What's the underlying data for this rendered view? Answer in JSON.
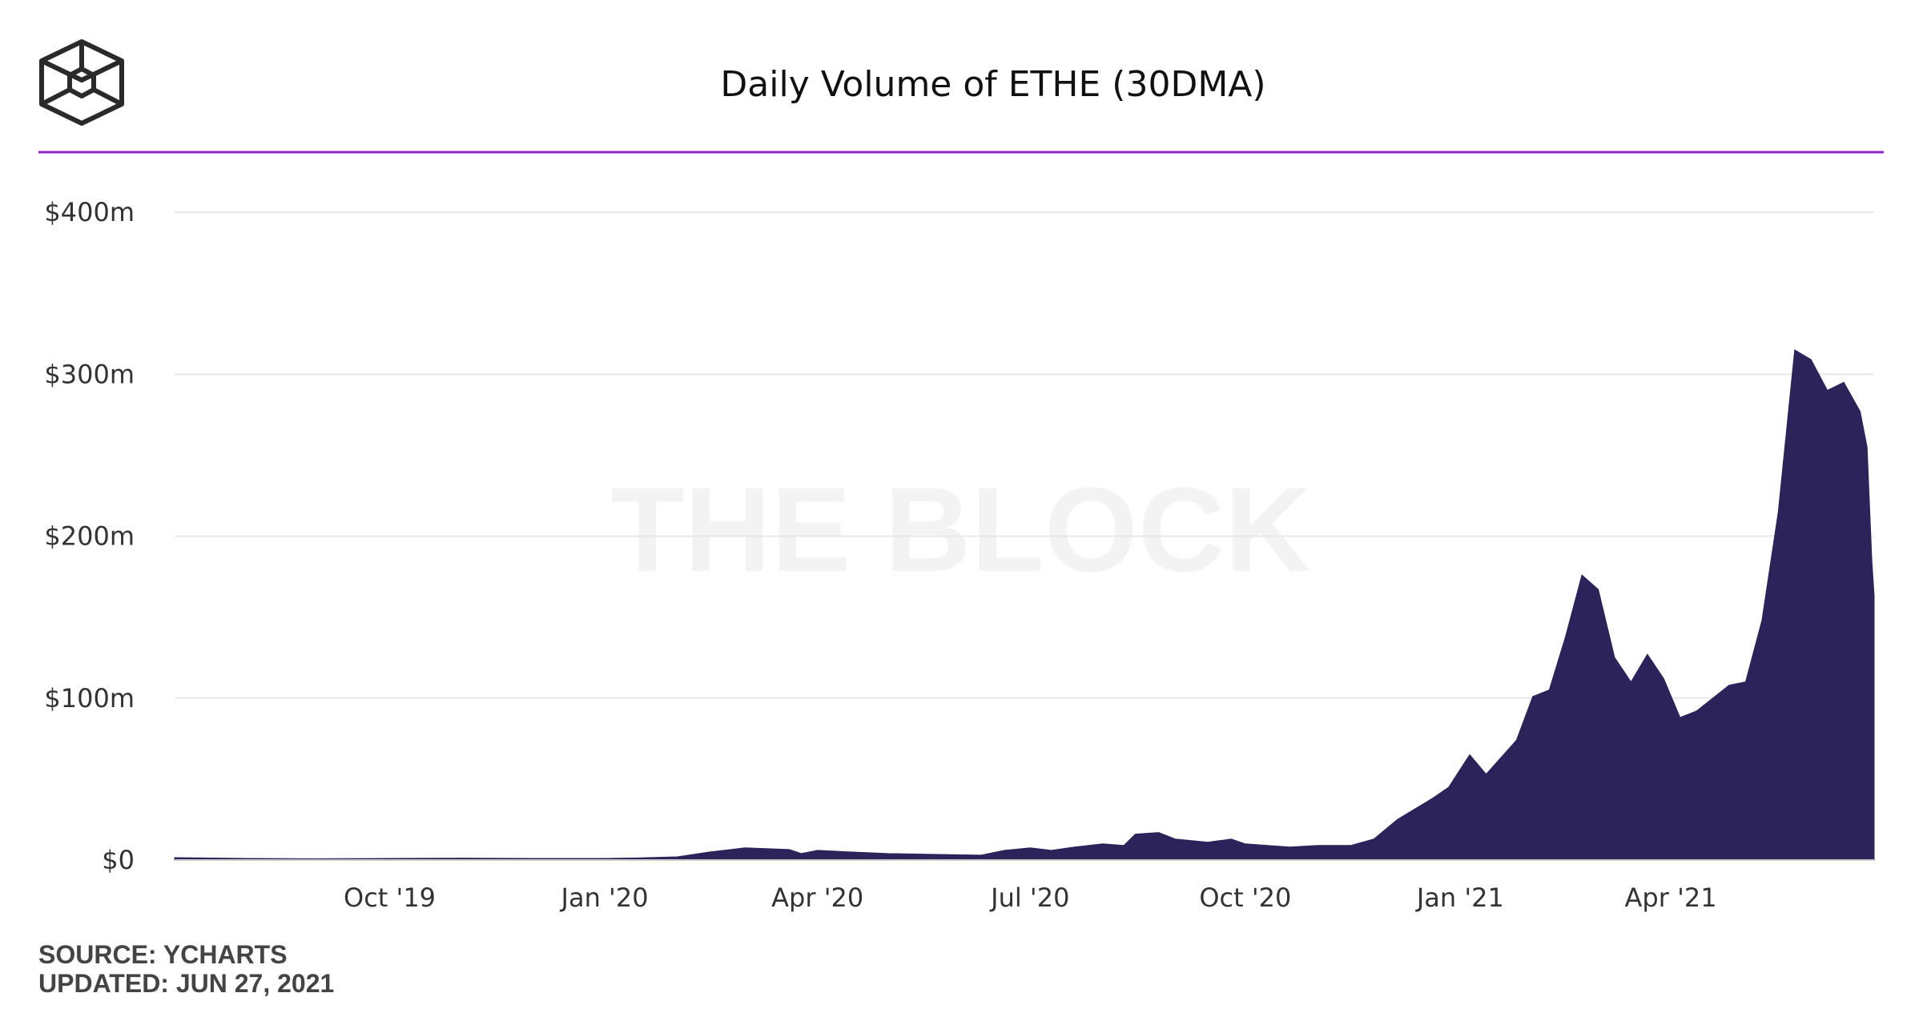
{
  "colors": {
    "accent": "#8e24c9",
    "area_fill": "#2b235a",
    "grid": "#e8e8e8",
    "text": "#111111"
  },
  "logo": {
    "icon": "the-block-cube-logo-icon"
  },
  "watermark": "THE BLOCK",
  "footer": {
    "source": "SOURCE: YCHARTS",
    "updated": "UPDATED: JUN 27, 2021"
  },
  "chart_data": {
    "type": "area",
    "title": "Daily Volume of ETHE (30DMA)",
    "xlabel": "",
    "ylabel": "",
    "ylim": [
      0,
      400
    ],
    "y_ticks": [
      {
        "value": 0,
        "label": "$0"
      },
      {
        "value": 100,
        "label": "$100m"
      },
      {
        "value": 200,
        "label": "$200m"
      },
      {
        "value": 300,
        "label": "$300m"
      },
      {
        "value": 400,
        "label": "$400m"
      }
    ],
    "x_ticks": [
      {
        "label": "Oct '19",
        "date": "2019-10-01"
      },
      {
        "label": "Jan '20",
        "date": "2020-01-01"
      },
      {
        "label": "Apr '20",
        "date": "2020-04-01"
      },
      {
        "label": "Jul '20",
        "date": "2020-07-01"
      },
      {
        "label": "Oct '20",
        "date": "2020-10-01"
      },
      {
        "label": "Jan '21",
        "date": "2021-01-01"
      },
      {
        "label": "Apr '21",
        "date": "2021-04-01"
      }
    ],
    "x_range": [
      "2019-07-01",
      "2021-06-27"
    ],
    "grid": true,
    "legend": "none",
    "series": [
      {
        "name": "ETHE daily volume 30DMA ($m)",
        "points": [
          [
            "2019-07-01",
            1.5
          ],
          [
            "2019-08-01",
            1.0
          ],
          [
            "2019-09-01",
            0.8
          ],
          [
            "2019-10-01",
            1.0
          ],
          [
            "2019-11-01",
            1.2
          ],
          [
            "2019-12-01",
            1.0
          ],
          [
            "2020-01-01",
            1.0
          ],
          [
            "2020-01-15",
            1.3
          ],
          [
            "2020-02-01",
            2.0
          ],
          [
            "2020-02-15",
            5.0
          ],
          [
            "2020-03-01",
            7.5
          ],
          [
            "2020-03-20",
            6.5
          ],
          [
            "2020-03-25",
            4.0
          ],
          [
            "2020-04-01",
            6.0
          ],
          [
            "2020-04-15",
            5.0
          ],
          [
            "2020-05-01",
            4.0
          ],
          [
            "2020-05-20",
            3.5
          ],
          [
            "2020-06-10",
            3.0
          ],
          [
            "2020-06-20",
            6.0
          ],
          [
            "2020-07-01",
            7.5
          ],
          [
            "2020-07-10",
            6.0
          ],
          [
            "2020-07-20",
            8.0
          ],
          [
            "2020-08-01",
            10.0
          ],
          [
            "2020-08-10",
            9.0
          ],
          [
            "2020-08-15",
            16.0
          ],
          [
            "2020-08-25",
            17.0
          ],
          [
            "2020-09-01",
            13.0
          ],
          [
            "2020-09-15",
            11.0
          ],
          [
            "2020-09-25",
            13.0
          ],
          [
            "2020-10-01",
            10.0
          ],
          [
            "2020-10-20",
            8.0
          ],
          [
            "2020-11-01",
            9.0
          ],
          [
            "2020-11-15",
            9.0
          ],
          [
            "2020-11-25",
            13.0
          ],
          [
            "2020-12-05",
            25.0
          ],
          [
            "2020-12-20",
            38.0
          ],
          [
            "2020-12-27",
            45.0
          ],
          [
            "2021-01-05",
            65.0
          ],
          [
            "2021-01-12",
            53.0
          ],
          [
            "2021-01-25",
            74.0
          ],
          [
            "2021-02-01",
            101.0
          ],
          [
            "2021-02-08",
            105.0
          ],
          [
            "2021-02-15",
            138.0
          ],
          [
            "2021-02-22",
            176.0
          ],
          [
            "2021-03-01",
            167.0
          ],
          [
            "2021-03-08",
            125.0
          ],
          [
            "2021-03-15",
            110.0
          ],
          [
            "2021-03-22",
            127.0
          ],
          [
            "2021-03-29",
            112.0
          ],
          [
            "2021-04-05",
            88.0
          ],
          [
            "2021-04-12",
            92.0
          ],
          [
            "2021-04-26",
            108.0
          ],
          [
            "2021-05-03",
            110.0
          ],
          [
            "2021-05-10",
            148.0
          ],
          [
            "2021-05-17",
            215.0
          ],
          [
            "2021-05-24",
            315.0
          ],
          [
            "2021-05-31",
            309.0
          ],
          [
            "2021-06-07",
            290.0
          ],
          [
            "2021-06-14",
            295.0
          ],
          [
            "2021-06-21",
            277.0
          ],
          [
            "2021-06-24",
            255.0
          ],
          [
            "2021-06-26",
            185.0
          ],
          [
            "2021-06-27",
            163.0
          ]
        ]
      }
    ]
  }
}
